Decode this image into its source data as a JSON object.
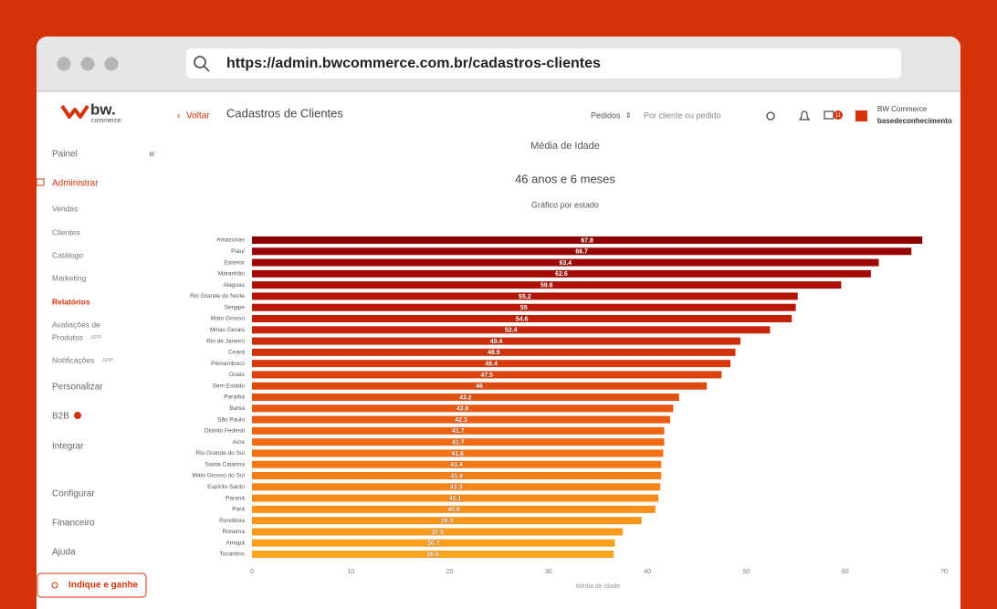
{
  "browser": {
    "url": "https://admin.bwcommerce.com.br/cadastros-clientes"
  },
  "header": {
    "logo": "bw.",
    "logo_sub": "commerce",
    "back": "Voltar",
    "title": "Cadastros de Clientes",
    "filter": "Pedidos",
    "search_placeholder": "Por cliente ou pedido",
    "notifications_badge": "11",
    "user_name": "BW Commerce",
    "user_account": "basedeconhecimento"
  },
  "sidebar": {
    "painel": "Painel",
    "administrar": "Administrar",
    "vendas": "Vendas",
    "clientes": "Clientes",
    "catalogo": "Catálogo",
    "marketing": "Marketing",
    "relatorios": "Relatórios",
    "avaliacoes": [
      "Avaliações de",
      "Produtos"
    ],
    "app_tag": "APP",
    "notificacoes": "Notificações",
    "personalizar": "Personalizar",
    "b2b": "B2B",
    "integrar": "Integrar",
    "configurar": "Configurar",
    "financeiro": "Financeiro",
    "ajuda": "Ajuda",
    "button": "Indique e ganhe"
  },
  "chart_data": {
    "type": "bar",
    "orientation": "horizontal",
    "title": "Média de Idade",
    "subtitle": "46 anos e 6 meses",
    "caption": "Gráfico por estado",
    "x_label": "Média de Idade",
    "categories": [
      "Amazonas",
      "Piauí",
      "Exterior",
      "Maranhão",
      "Alagoas",
      "Rio Grande do Norte",
      "Sergipe",
      "Mato Grosso",
      "Minas Gerais",
      "Rio de Janeiro",
      "Ceará",
      "Pernambuco",
      "Goiás",
      "Sem Estado",
      "Paraíba",
      "Bahia",
      "São Paulo",
      "Distrito Federal",
      "Acre",
      "Rio Grande do Sul",
      "Santa Catarina",
      "Mato Grosso do Sul",
      "Espírito Santo",
      "Paraná",
      "Pará",
      "Rondônia",
      "Roraima",
      "Amapá",
      "Tocantins"
    ],
    "values": [
      67.8,
      66.7,
      63.4,
      62.6,
      59.6,
      55.2,
      55,
      54.6,
      52.4,
      49.4,
      48.9,
      48.4,
      47.5,
      46,
      43.2,
      42.6,
      42.3,
      41.7,
      41.7,
      41.6,
      41.4,
      41.4,
      41.3,
      41.1,
      40.8,
      39.4,
      37.5,
      36.7,
      36.6
    ],
    "colors": [
      "#8e0000",
      "#960202",
      "#9e0604",
      "#a50a05",
      "#ad0f06",
      "#b41407",
      "#ba1a08",
      "#c02009",
      "#c6260a",
      "#cb2d0b",
      "#d0340c",
      "#d53b0d",
      "#da420e",
      "#de490f",
      "#e25010",
      "#e65711",
      "#e95e12",
      "#ec6513",
      "#ef6c14",
      "#f17215",
      "#f37816",
      "#f57e17",
      "#f78418",
      "#f88a19",
      "#f9901a",
      "#fa951b",
      "#fb9a1c",
      "#fc9f1d",
      "#fda41e"
    ],
    "xlim": [
      0,
      70
    ],
    "xticks": [
      0,
      10,
      20,
      30,
      40,
      50,
      60,
      70
    ]
  }
}
